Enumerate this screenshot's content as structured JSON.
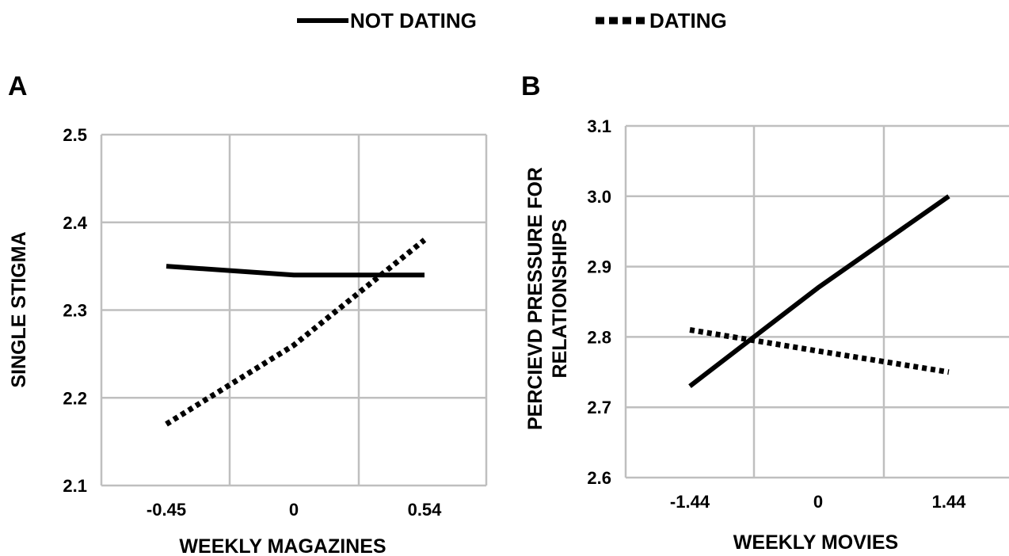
{
  "legend": {
    "items": [
      {
        "label": "NOT DATING",
        "style": "solid"
      },
      {
        "label": "DATING",
        "style": "dotted"
      }
    ],
    "placement": "top-center"
  },
  "colors": {
    "line": "#000000",
    "grid": "#bfbfbf",
    "background": "#ffffff"
  },
  "chart_data": [
    {
      "panel_label": "A",
      "type": "line",
      "categories": [
        "-0.45",
        "0",
        "0.54"
      ],
      "series": [
        {
          "name": "NOT DATING",
          "values": [
            2.35,
            2.34,
            2.34
          ]
        },
        {
          "name": "DATING",
          "values": [
            2.17,
            2.26,
            2.38
          ]
        }
      ],
      "xlabel": "WEEKLY MAGAZINES",
      "ylabel": "SINGLE STIGMA",
      "ylim": [
        2.1,
        2.5
      ],
      "yticks": [
        "2.1",
        "2.2",
        "2.3",
        "2.4",
        "2.5"
      ],
      "grid": true
    },
    {
      "panel_label": "B",
      "type": "line",
      "categories": [
        "-1.44",
        "0",
        "1.44"
      ],
      "series": [
        {
          "name": "NOT DATING",
          "values": [
            2.73,
            2.87,
            3.0
          ]
        },
        {
          "name": "DATING",
          "values": [
            2.81,
            2.78,
            2.75
          ]
        }
      ],
      "xlabel": "WEEKLY MOVIES",
      "ylabel_lines": [
        "PERCIEVD PRESSURE FOR",
        "RELATIONSHIPS"
      ],
      "ylim": [
        2.6,
        3.1
      ],
      "yticks": [
        "2.6",
        "2.7",
        "2.8",
        "2.9",
        "3.0",
        "3.1"
      ],
      "grid": true
    }
  ]
}
